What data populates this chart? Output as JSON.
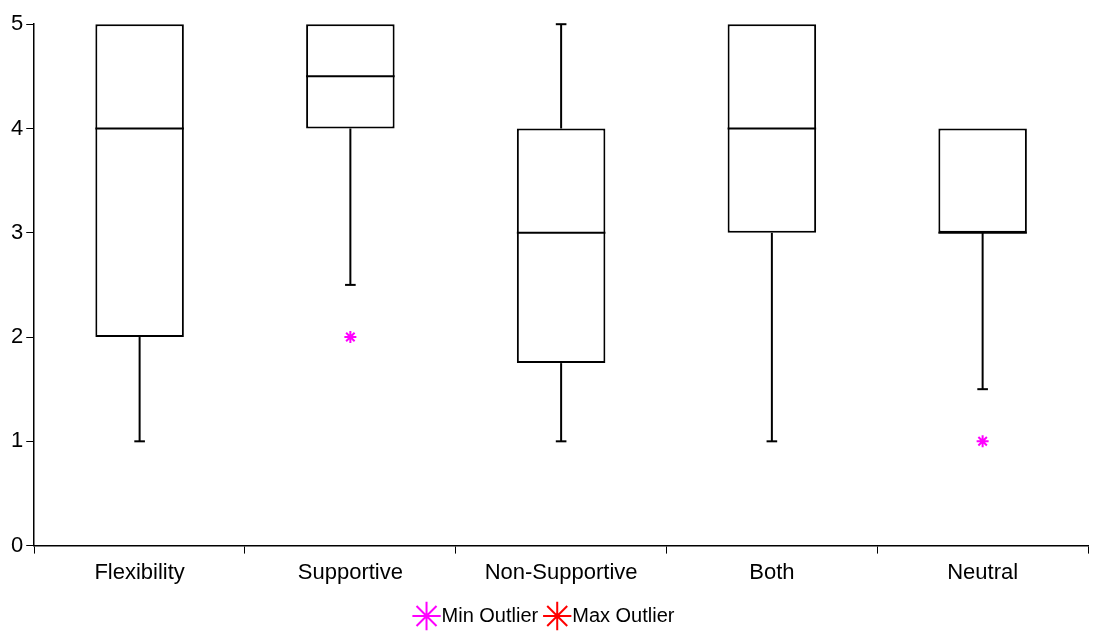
{
  "chart_data": {
    "type": "box",
    "categories": [
      "Flexibility",
      "Supportive",
      "Non-Supportive",
      "Both",
      "Neutral"
    ],
    "boxes": [
      {
        "low": 1,
        "q1": 2,
        "median": 4,
        "q3": 5,
        "high": 5
      },
      {
        "low": 2.5,
        "q1": 4,
        "median": 4.5,
        "q3": 5,
        "high": 5
      },
      {
        "low": 1,
        "q1": 1.75,
        "median": 3,
        "q3": 4,
        "high": 5
      },
      {
        "low": 1,
        "q1": 3,
        "median": 4,
        "q3": 5,
        "high": 5
      },
      {
        "low": 1.5,
        "q1": 3,
        "median": 3,
        "q3": 4,
        "high": 4
      }
    ],
    "series": [
      {
        "name": "Min Outlier",
        "type": "scatter",
        "color": "#ff00ff",
        "marker": "cross",
        "x": [
          "Supportive",
          "Neutral"
        ],
        "values": [
          2,
          1
        ]
      },
      {
        "name": "Max Outlier",
        "type": "scatter",
        "color": "#ff0000",
        "marker": "cross",
        "values": [
          null,
          null,
          null,
          null,
          null
        ]
      }
    ],
    "ylim": [
      0,
      5
    ],
    "yticks": [
      0,
      1,
      2,
      3,
      4,
      5
    ],
    "grid": false,
    "legend": "bottom"
  }
}
